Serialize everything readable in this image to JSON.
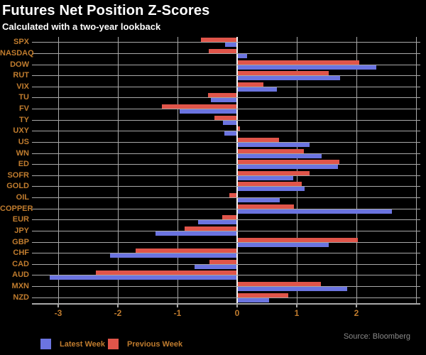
{
  "title": "Futures Net Position Z-Scores",
  "subtitle": "Calculated with a two-year lookback",
  "source": "Source: Bloomberg",
  "colors": {
    "background": "#000000",
    "title": "#ffffff",
    "axis_labels": "#c07c2e",
    "gridline": "#a9a9a9",
    "zero_line": "#f2f2f2",
    "latest_week": "#6b74e0",
    "previous_week": "#e0554a",
    "source_text": "#8a8a8a"
  },
  "legend": [
    {
      "label": "Latest Week",
      "color_key": "latest_week"
    },
    {
      "label": "Previous Week",
      "color_key": "previous_week"
    }
  ],
  "chart_data": {
    "type": "bar",
    "orientation": "horizontal",
    "title": "Futures Net Position Z-Scores",
    "subtitle": "Calculated with a two-year lookback",
    "xlabel": "",
    "ylabel": "",
    "xlim": [
      -3.45,
      3.08
    ],
    "xticks": [
      "-3",
      "-2",
      "-1",
      "0",
      "1",
      "2"
    ],
    "xtick_values": [
      -3,
      -2,
      -1,
      0,
      1,
      2
    ],
    "grid_values": [
      -3,
      -2,
      -1,
      0,
      1,
      2,
      3
    ],
    "grid": true,
    "legend_position": "bottom-left",
    "categories": [
      "SPX",
      "NASDAQ",
      "DOW",
      "RUT",
      "VIX",
      "TU",
      "FV",
      "TY",
      "UXY",
      "US",
      "WN",
      "ED",
      "SOFR",
      "GOLD",
      "OIL",
      "COPPER",
      "EUR",
      "JPY",
      "GBP",
      "CHF",
      "CAD",
      "AUD",
      "MXN",
      "NZD"
    ],
    "series": [
      {
        "name": "Previous Week",
        "values": [
          -0.61,
          -0.48,
          2.05,
          1.54,
          0.44,
          -0.49,
          -1.26,
          -0.38,
          0.05,
          0.7,
          1.12,
          1.71,
          1.21,
          1.08,
          -0.13,
          0.95,
          -0.25,
          -0.88,
          2.02,
          -1.7,
          -0.46,
          -2.37,
          1.41,
          0.86
        ]
      },
      {
        "name": "Latest Week",
        "values": [
          -0.2,
          0.17,
          2.33,
          1.73,
          0.67,
          -0.44,
          -0.97,
          -0.24,
          -0.22,
          1.21,
          1.42,
          1.69,
          0.94,
          1.13,
          0.71,
          2.6,
          -0.65,
          -1.37,
          1.54,
          -2.13,
          -0.72,
          -3.14,
          1.85,
          0.54
        ]
      }
    ]
  }
}
